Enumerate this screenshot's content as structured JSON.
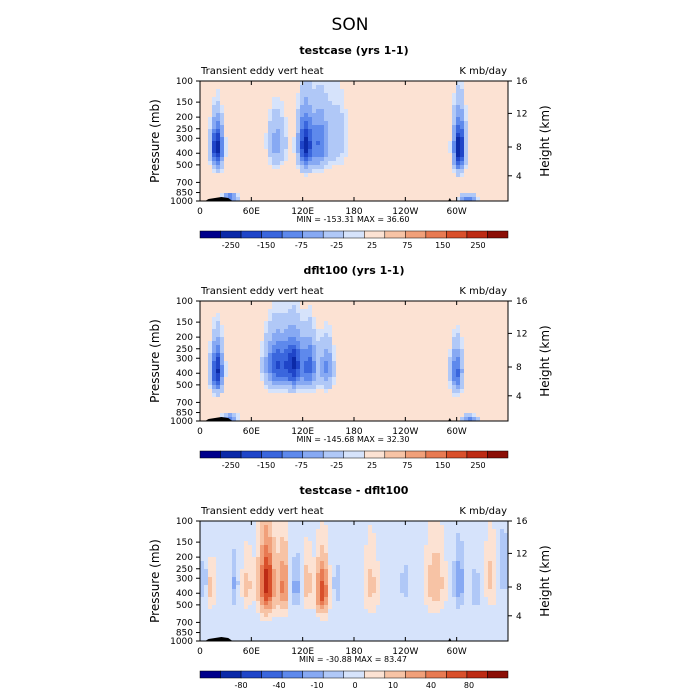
{
  "title": "SON",
  "colors": {
    "ramp_colors": [
      "#00008b",
      "#0b2aa8",
      "#1f45c8",
      "#3a66dd",
      "#5e89ec",
      "#87a9f3",
      "#b0c8f7",
      "#d6e3fb",
      "#fce2d3",
      "#f7c3a5",
      "#f1a07a",
      "#e87a52",
      "#d9502b",
      "#bd2b14",
      "#8b0e06"
    ],
    "land": "#000000"
  },
  "chart_data": [
    {
      "type": "heatmap",
      "title": "testcase (yrs 1-1)",
      "left_label": "Transient eddy vert heat",
      "units": "K mb/day",
      "ylabel": "Pressure (mb)",
      "y2label": "Height (km)",
      "x_ticks": [
        "0",
        "60E",
        "120E",
        "180",
        "120W",
        "60W"
      ],
      "y_ticks": [
        "100",
        "150",
        "200",
        "250",
        "300",
        "400",
        "500",
        "700",
        "850",
        "1000"
      ],
      "y2_ticks": [
        "16",
        "12",
        "8",
        "4"
      ],
      "stats": "MIN = -153.31   MAX =  36.60",
      "colorbar_labels": [
        "-250",
        "-150",
        "-75",
        "-25",
        "25",
        "75",
        "150",
        "250"
      ],
      "blobs": [
        {
          "lon": 20,
          "p": 360,
          "v": -110,
          "sx": 5,
          "sp": 110
        },
        {
          "lon": 35,
          "p": 930,
          "v": -70,
          "sx": 6,
          "sp": 50
        },
        {
          "lon": 90,
          "p": 330,
          "v": -40,
          "sx": 8,
          "sp": 120
        },
        {
          "lon": 123,
          "p": 340,
          "v": -100,
          "sx": 6,
          "sp": 130
        },
        {
          "lon": 140,
          "p": 330,
          "v": -60,
          "sx": 7,
          "sp": 130
        },
        {
          "lon": 160,
          "p": 300,
          "v": -25,
          "sx": 10,
          "sp": 150
        },
        {
          "lon": 303,
          "p": 360,
          "v": -110,
          "sx": 5,
          "sp": 130
        },
        {
          "lon": 313,
          "p": 950,
          "v": -60,
          "sx": 7,
          "sp": 50
        }
      ]
    },
    {
      "type": "heatmap",
      "title": "dflt100 (yrs 1-1)",
      "left_label": "Transient eddy vert heat",
      "units": "K mb/day",
      "ylabel": "Pressure (mb)",
      "y2label": "Height (km)",
      "x_ticks": [
        "0",
        "60E",
        "120E",
        "180",
        "120W",
        "60W"
      ],
      "y_ticks": [
        "100",
        "150",
        "200",
        "250",
        "300",
        "400",
        "500",
        "700",
        "850",
        "1000"
      ],
      "y2_ticks": [
        "16",
        "12",
        "8",
        "4"
      ],
      "stats": "MIN = -145.68   MAX =  32.30",
      "colorbar_labels": [
        "-250",
        "-150",
        "-75",
        "-25",
        "25",
        "75",
        "150",
        "250"
      ],
      "blobs": [
        {
          "lon": 20,
          "p": 380,
          "v": -100,
          "sx": 5,
          "sp": 120
        },
        {
          "lon": 35,
          "p": 940,
          "v": -60,
          "sx": 6,
          "sp": 50
        },
        {
          "lon": 90,
          "p": 340,
          "v": -80,
          "sx": 10,
          "sp": 120
        },
        {
          "lon": 110,
          "p": 340,
          "v": -90,
          "sx": 7,
          "sp": 120
        },
        {
          "lon": 128,
          "p": 350,
          "v": -70,
          "sx": 6,
          "sp": 120
        },
        {
          "lon": 148,
          "p": 360,
          "v": -50,
          "sx": 6,
          "sp": 120
        },
        {
          "lon": 300,
          "p": 390,
          "v": -70,
          "sx": 5,
          "sp": 120
        },
        {
          "lon": 315,
          "p": 960,
          "v": -50,
          "sx": 7,
          "sp": 50
        }
      ]
    },
    {
      "type": "heatmap",
      "title": "testcase - dflt100",
      "left_label": "Transient eddy vert heat",
      "units": "K mb/day",
      "ylabel": "Pressure (mb)",
      "y2label": "Height (km)",
      "x_ticks": [
        "0",
        "60E",
        "120E",
        "180",
        "120W",
        "60W"
      ],
      "y_ticks": [
        "100",
        "150",
        "200",
        "250",
        "300",
        "400",
        "500",
        "700",
        "850",
        "1000"
      ],
      "y2_ticks": [
        "16",
        "12",
        "8",
        "4"
      ],
      "stats": "MIN = -30.88   MAX =  83.47",
      "colorbar_labels": [
        "-80",
        "-40",
        "-10",
        "0",
        "10",
        "40",
        "80"
      ],
      "blobs": [
        {
          "lon": 5,
          "p": 320,
          "v": -25,
          "sx": 4,
          "sp": 110
        },
        {
          "lon": 12,
          "p": 350,
          "v": 20,
          "sx": 4,
          "sp": 110
        },
        {
          "lon": 40,
          "p": 330,
          "v": -25,
          "sx": 4,
          "sp": 130
        },
        {
          "lon": 55,
          "p": 340,
          "v": 15,
          "sx": 5,
          "sp": 120
        },
        {
          "lon": 78,
          "p": 330,
          "v": 70,
          "sx": 6,
          "sp": 150
        },
        {
          "lon": 98,
          "p": 350,
          "v": 40,
          "sx": 5,
          "sp": 140
        },
        {
          "lon": 112,
          "p": 350,
          "v": -30,
          "sx": 5,
          "sp": 130
        },
        {
          "lon": 125,
          "p": 340,
          "v": 20,
          "sx": 4,
          "sp": 120
        },
        {
          "lon": 143,
          "p": 380,
          "v": 55,
          "sx": 5,
          "sp": 130
        },
        {
          "lon": 160,
          "p": 340,
          "v": -20,
          "sx": 4,
          "sp": 120
        },
        {
          "lon": 200,
          "p": 350,
          "v": 15,
          "sx": 6,
          "sp": 150
        },
        {
          "lon": 240,
          "p": 330,
          "v": -15,
          "sx": 8,
          "sp": 150
        },
        {
          "lon": 275,
          "p": 330,
          "v": 20,
          "sx": 8,
          "sp": 150
        },
        {
          "lon": 303,
          "p": 330,
          "v": -35,
          "sx": 5,
          "sp": 140
        },
        {
          "lon": 322,
          "p": 380,
          "v": -25,
          "sx": 4,
          "sp": 120
        },
        {
          "lon": 340,
          "p": 300,
          "v": 15,
          "sx": 5,
          "sp": 130
        },
        {
          "lon": 355,
          "p": 250,
          "v": -25,
          "sx": 4,
          "sp": 120
        }
      ]
    }
  ]
}
